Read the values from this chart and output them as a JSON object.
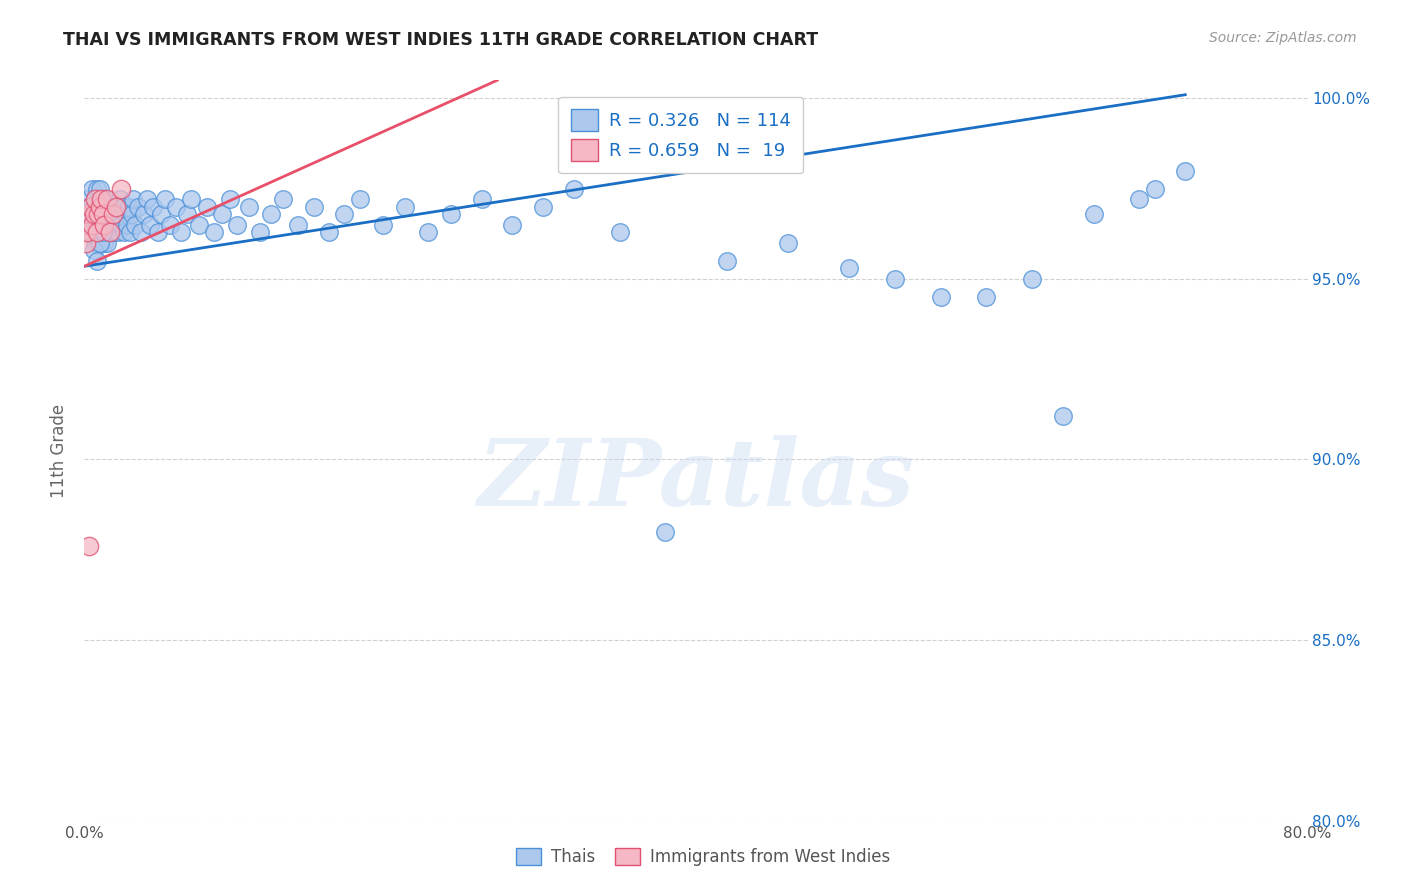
{
  "title": "THAI VS IMMIGRANTS FROM WEST INDIES 11TH GRADE CORRELATION CHART",
  "source": "Source: ZipAtlas.com",
  "ylabel": "11th Grade",
  "watermark": "ZIPatlas",
  "xlim": [
    0.0,
    0.8
  ],
  "ylim": [
    0.8,
    1.005
  ],
  "ytick_positions": [
    0.8,
    0.85,
    0.9,
    0.95,
    1.0
  ],
  "ytick_labels": [
    "80.0%",
    "85.0%",
    "90.0%",
    "95.0%",
    "100.0%"
  ],
  "xtick_positions": [
    0.0,
    0.1,
    0.2,
    0.3,
    0.4,
    0.5,
    0.6,
    0.7,
    0.8
  ],
  "xtick_labels": [
    "0.0%",
    "",
    "",
    "",
    "",
    "",
    "",
    "",
    "80.0%"
  ],
  "blue_fill": "#adc8ed",
  "blue_edge": "#4a90d9",
  "pink_fill": "#f5b8c4",
  "pink_edge": "#e05070",
  "blue_line_color": "#1a6fc4",
  "pink_line_color": "#e8506a",
  "legend_text_color": "#1a6fc4",
  "right_axis_color": "#1a6fc4",
  "R_blue": 0.326,
  "N_blue": 114,
  "R_pink": 0.659,
  "N_pink": 19,
  "thai_x": [
    0.001,
    0.002,
    0.003,
    0.003,
    0.004,
    0.004,
    0.005,
    0.005,
    0.006,
    0.006,
    0.007,
    0.007,
    0.007,
    0.008,
    0.008,
    0.008,
    0.009,
    0.009,
    0.009,
    0.01,
    0.01,
    0.01,
    0.011,
    0.011,
    0.012,
    0.012,
    0.013,
    0.013,
    0.013,
    0.014,
    0.014,
    0.015,
    0.015,
    0.015,
    0.016,
    0.016,
    0.017,
    0.017,
    0.018,
    0.018,
    0.019,
    0.019,
    0.02,
    0.02,
    0.021,
    0.021,
    0.022,
    0.022,
    0.023,
    0.024,
    0.025,
    0.026,
    0.027,
    0.028,
    0.029,
    0.03,
    0.031,
    0.032,
    0.033,
    0.035,
    0.037,
    0.039,
    0.041,
    0.043,
    0.045,
    0.048,
    0.05,
    0.053,
    0.056,
    0.06,
    0.063,
    0.067,
    0.07,
    0.075,
    0.08,
    0.085,
    0.09,
    0.095,
    0.1,
    0.108,
    0.115,
    0.122,
    0.13,
    0.14,
    0.15,
    0.16,
    0.17,
    0.18,
    0.195,
    0.21,
    0.225,
    0.24,
    0.26,
    0.28,
    0.3,
    0.32,
    0.35,
    0.38,
    0.42,
    0.46,
    0.5,
    0.53,
    0.56,
    0.59,
    0.62,
    0.64,
    0.66,
    0.69,
    0.7,
    0.72,
    0.006,
    0.008,
    0.01,
    0.012
  ],
  "thai_y": [
    0.968,
    0.972,
    0.965,
    0.97,
    0.963,
    0.968,
    0.97,
    0.975,
    0.965,
    0.97,
    0.96,
    0.965,
    0.972,
    0.963,
    0.968,
    0.975,
    0.96,
    0.965,
    0.97,
    0.963,
    0.968,
    0.975,
    0.96,
    0.965,
    0.963,
    0.97,
    0.96,
    0.965,
    0.972,
    0.963,
    0.968,
    0.96,
    0.965,
    0.972,
    0.963,
    0.968,
    0.965,
    0.97,
    0.963,
    0.968,
    0.965,
    0.97,
    0.963,
    0.968,
    0.965,
    0.97,
    0.963,
    0.968,
    0.972,
    0.965,
    0.97,
    0.963,
    0.968,
    0.965,
    0.97,
    0.963,
    0.968,
    0.972,
    0.965,
    0.97,
    0.963,
    0.968,
    0.972,
    0.965,
    0.97,
    0.963,
    0.968,
    0.972,
    0.965,
    0.97,
    0.963,
    0.968,
    0.972,
    0.965,
    0.97,
    0.963,
    0.968,
    0.972,
    0.965,
    0.97,
    0.963,
    0.968,
    0.972,
    0.965,
    0.97,
    0.963,
    0.968,
    0.972,
    0.965,
    0.97,
    0.963,
    0.968,
    0.972,
    0.965,
    0.97,
    0.975,
    0.963,
    0.88,
    0.955,
    0.96,
    0.953,
    0.95,
    0.945,
    0.945,
    0.95,
    0.912,
    0.968,
    0.972,
    0.975,
    0.98,
    0.958,
    0.955,
    0.96,
    0.963
  ],
  "wi_x": [
    0.001,
    0.002,
    0.003,
    0.004,
    0.005,
    0.006,
    0.007,
    0.008,
    0.009,
    0.01,
    0.011,
    0.012,
    0.013,
    0.015,
    0.017,
    0.019,
    0.021,
    0.024,
    0.003
  ],
  "wi_y": [
    0.96,
    0.963,
    0.968,
    0.97,
    0.965,
    0.968,
    0.972,
    0.963,
    0.968,
    0.97,
    0.972,
    0.968,
    0.965,
    0.972,
    0.963,
    0.968,
    0.97,
    0.975,
    0.876
  ],
  "blue_trendline_x": [
    0.0,
    0.72
  ],
  "blue_trendline_y": [
    0.9535,
    1.001
  ],
  "pink_trendline_x": [
    0.0,
    0.27
  ],
  "pink_trendline_y": [
    0.9535,
    1.005
  ]
}
